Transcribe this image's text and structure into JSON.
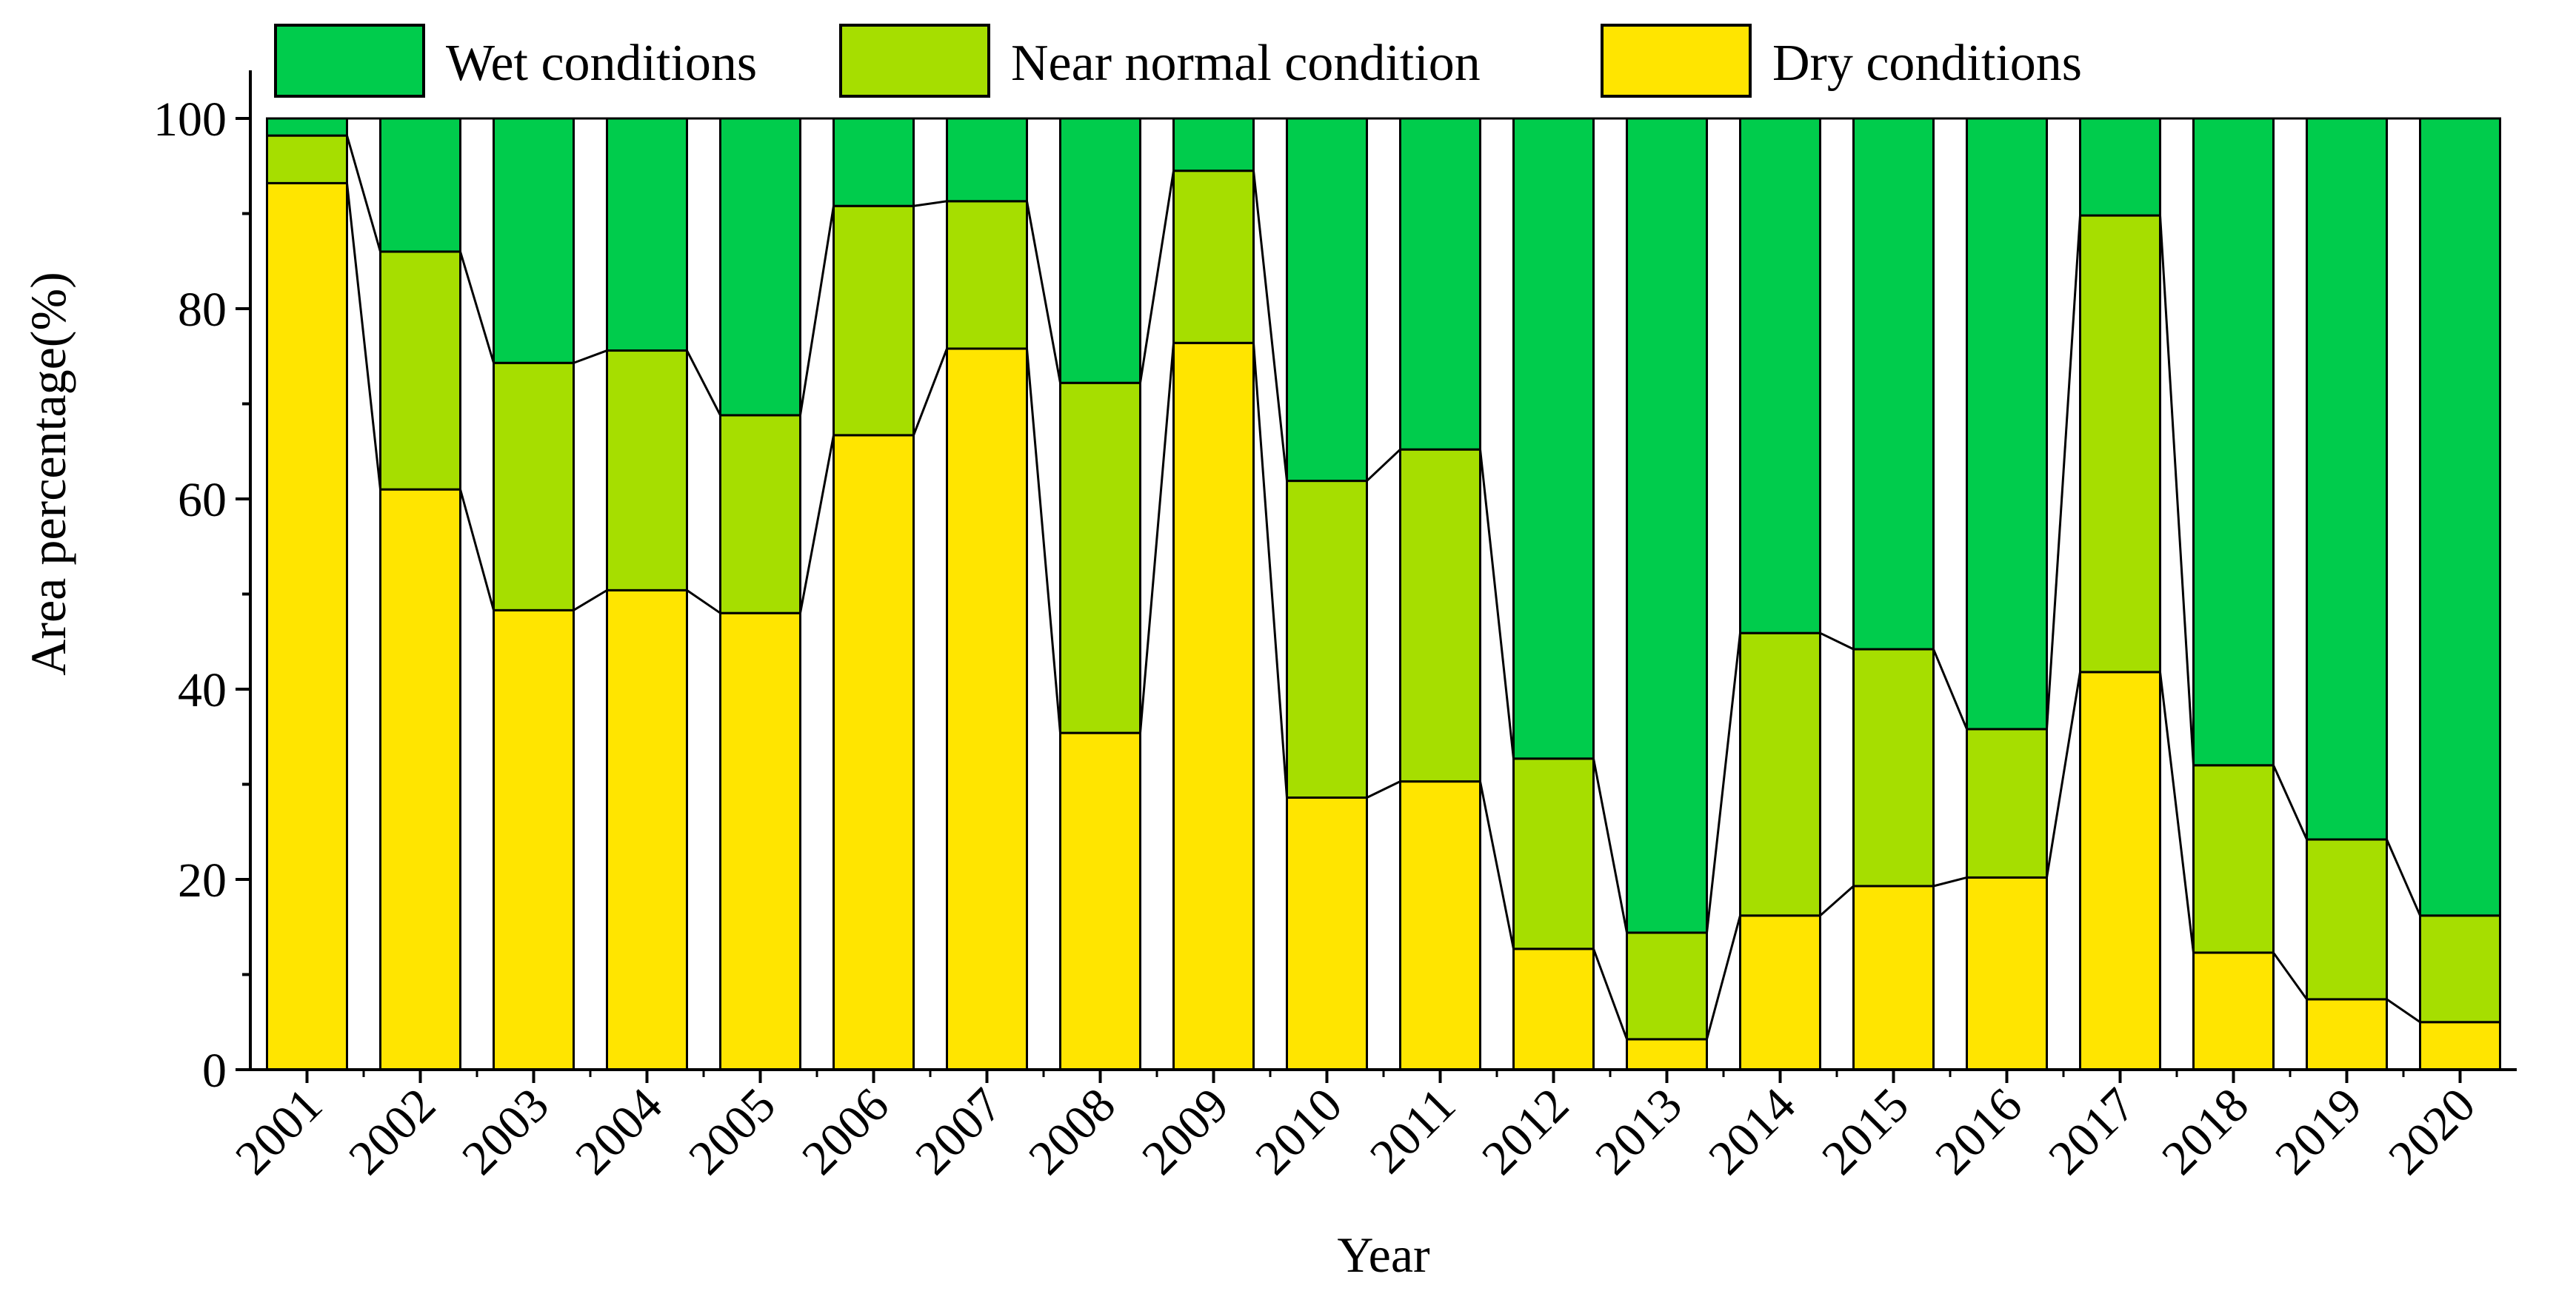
{
  "chart_data": {
    "type": "bar",
    "stacked": true,
    "title": "",
    "xlabel": "Year",
    "ylabel": "Area percentage(%)",
    "ylim": [
      0,
      100
    ],
    "yticks": [
      0,
      20,
      40,
      60,
      80,
      100
    ],
    "grid": false,
    "legend_position": "top",
    "categories": [
      "2001",
      "2002",
      "2003",
      "2004",
      "2005",
      "2006",
      "2007",
      "2008",
      "2009",
      "2010",
      "2011",
      "2012",
      "2013",
      "2014",
      "2015",
      "2016",
      "2017",
      "2018",
      "2019",
      "2020"
    ],
    "series": [
      {
        "name": "Dry conditions",
        "color": "#FFE500",
        "values": [
          93.2,
          61.0,
          48.3,
          50.4,
          48.0,
          66.7,
          75.8,
          35.4,
          76.4,
          28.6,
          30.3,
          12.7,
          3.2,
          16.2,
          19.3,
          20.2,
          41.8,
          12.3,
          7.4,
          5.0
        ]
      },
      {
        "name": "Near normal condition",
        "color": "#A6DE00",
        "values": [
          5.0,
          25.0,
          26.0,
          25.2,
          20.8,
          24.1,
          15.5,
          36.8,
          18.1,
          33.3,
          34.9,
          20.0,
          11.2,
          29.7,
          24.9,
          15.6,
          48.0,
          19.7,
          16.8,
          11.2
        ]
      },
      {
        "name": "Wet conditions",
        "color": "#00CC4C",
        "values": [
          1.8,
          14.0,
          25.7,
          24.4,
          31.2,
          9.2,
          8.7,
          27.8,
          5.5,
          38.1,
          34.8,
          67.3,
          85.6,
          54.1,
          55.8,
          64.2,
          10.2,
          68.0,
          75.8,
          83.8
        ]
      }
    ]
  }
}
